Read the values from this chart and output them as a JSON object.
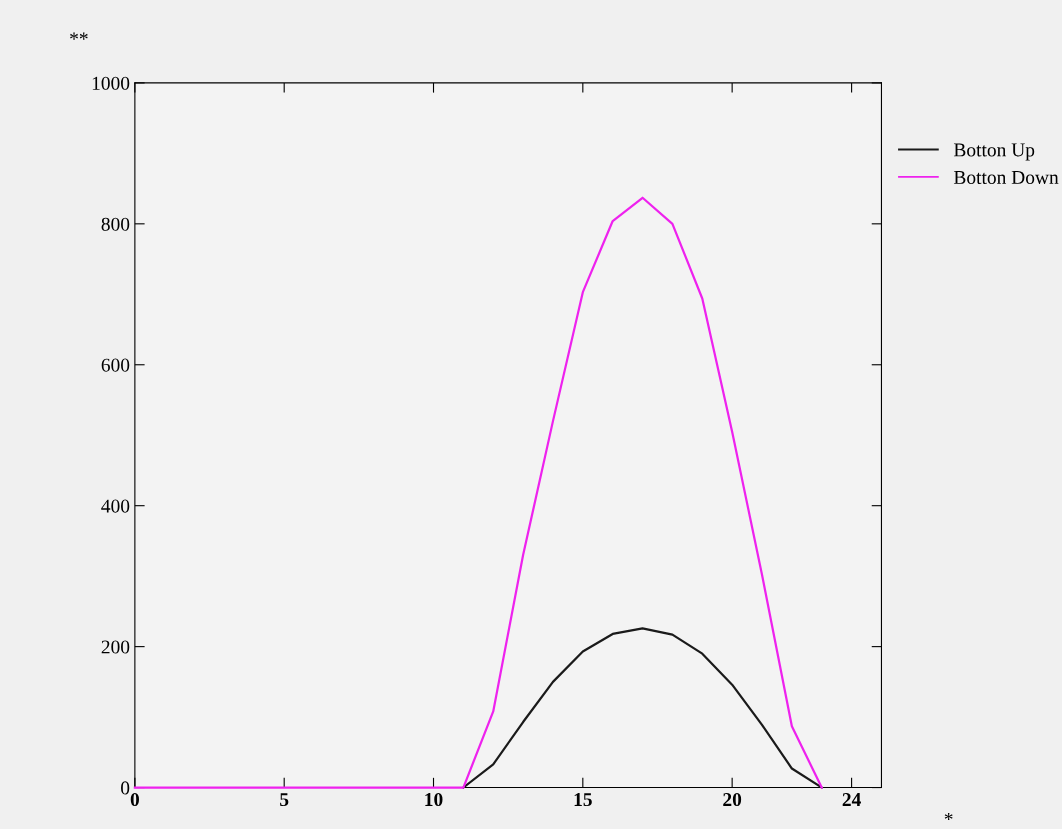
{
  "chart_data": {
    "type": "line",
    "xlabel": "*",
    "ylabel": "**",
    "x": [
      0,
      1,
      2,
      3,
      4,
      5,
      6,
      7,
      8,
      9,
      10,
      11,
      12,
      13,
      14,
      15,
      16,
      17,
      18,
      19,
      20,
      21,
      22,
      23
    ],
    "series": [
      {
        "name": "Botton Up",
        "color": "#1a1a1a",
        "values": [
          null,
          null,
          null,
          null,
          null,
          null,
          null,
          null,
          null,
          null,
          null,
          0,
          33,
          93,
          150,
          193,
          218,
          226,
          217,
          190,
          146,
          89,
          27,
          0
        ]
      },
      {
        "name": "Botton Down",
        "color": "#ee22ee",
        "values": [
          0,
          0,
          0,
          0,
          0,
          0,
          0,
          0,
          0,
          0,
          0,
          0,
          108,
          330,
          520,
          703,
          804,
          837,
          800,
          694,
          505,
          302,
          87,
          0
        ]
      }
    ],
    "xlim": [
      0,
      25
    ],
    "xticks": [
      0,
      5,
      10,
      15,
      20,
      24
    ],
    "ylim": [
      0,
      1000
    ],
    "yticks": [
      0,
      200,
      400,
      600,
      800,
      1000
    ],
    "grid": false,
    "legend": "right",
    "marker": "none",
    "line_style": "solid"
  }
}
